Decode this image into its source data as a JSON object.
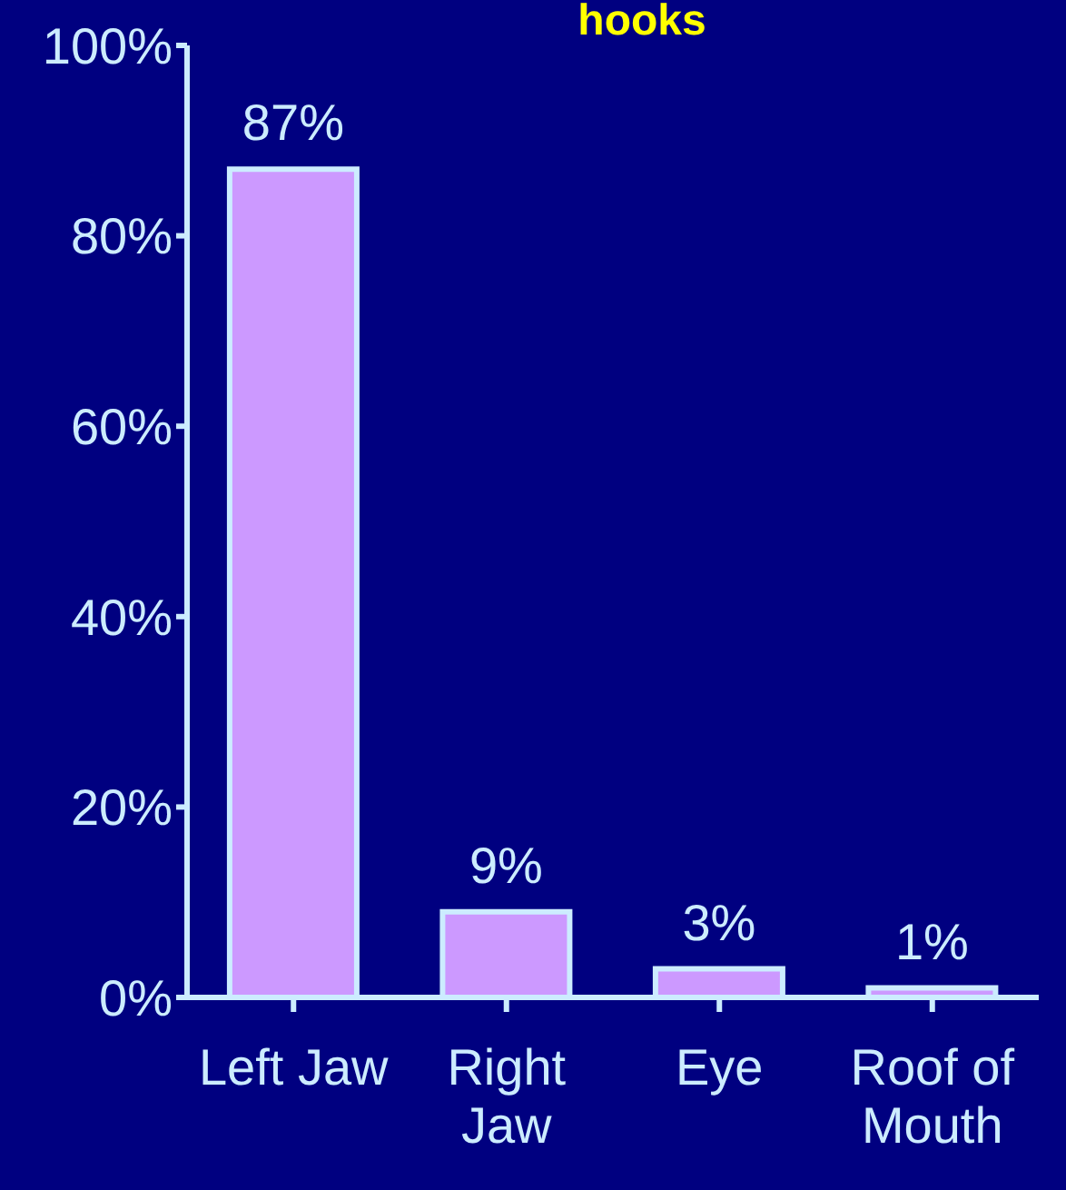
{
  "chart_data": {
    "type": "bar",
    "title": "hooks",
    "categories": [
      "Left Jaw",
      "Right Jaw",
      "Eye",
      "Roof of Mouth"
    ],
    "values": [
      87,
      9,
      3,
      1
    ],
    "color": "#cc99ff",
    "ylim": [
      0,
      100
    ],
    "yticks": [
      {
        "value": 0,
        "label": "0%"
      },
      {
        "value": 20,
        "label": "20%"
      },
      {
        "value": 40,
        "label": "40%"
      },
      {
        "value": 60,
        "label": "60%"
      },
      {
        "value": 80,
        "label": "80%"
      },
      {
        "value": 100,
        "label": "100%"
      }
    ],
    "value_labels": [
      "87%",
      "9%",
      "3%",
      "1%"
    ]
  }
}
